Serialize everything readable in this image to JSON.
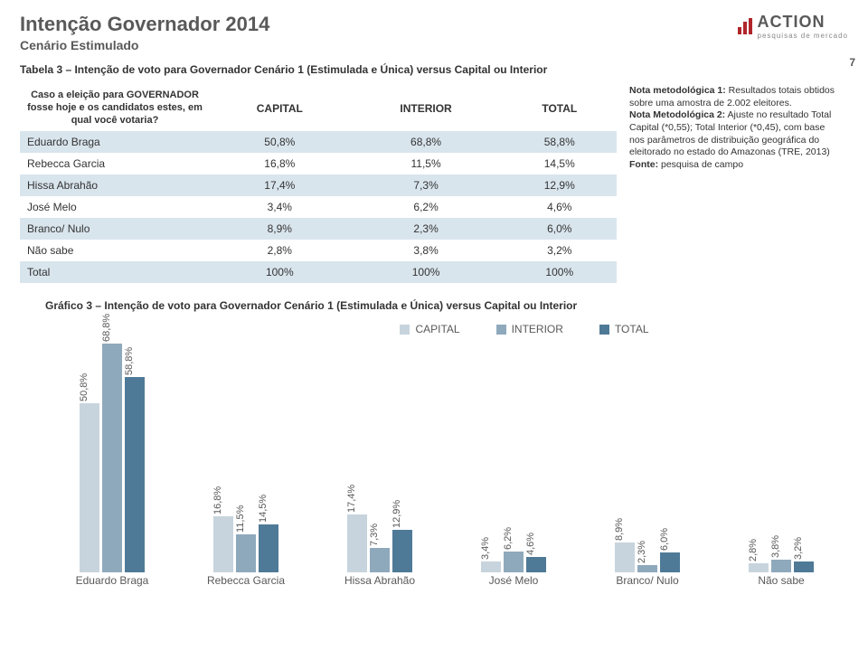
{
  "page_number": "7",
  "header": {
    "title": "Intenção Governador 2014",
    "subtitle": "Cenário Estimulado",
    "logo_name": "ACTION",
    "logo_tag": "pesquisas de mercado"
  },
  "tabela_title": "Tabela 3 – Intenção de voto para Governador Cenário 1 (Estimulada e Única) versus Capital ou Interior",
  "table": {
    "question": "Caso a eleição para GOVERNADOR fosse hoje e os candidatos estes, em qual você votaria?",
    "columns": [
      "CAPITAL",
      "INTERIOR",
      "TOTAL"
    ],
    "rows": [
      {
        "label": "Eduardo Braga",
        "vals": [
          "50,8%",
          "68,8%",
          "58,8%"
        ],
        "band": true
      },
      {
        "label": "Rebecca Garcia",
        "vals": [
          "16,8%",
          "11,5%",
          "14,5%"
        ],
        "band": false
      },
      {
        "label": "Hissa Abrahão",
        "vals": [
          "17,4%",
          "7,3%",
          "12,9%"
        ],
        "band": true
      },
      {
        "label": "José Melo",
        "vals": [
          "3,4%",
          "6,2%",
          "4,6%"
        ],
        "band": false
      },
      {
        "label": "Branco/ Nulo",
        "vals": [
          "8,9%",
          "2,3%",
          "6,0%"
        ],
        "band": true
      },
      {
        "label": "Não sabe",
        "vals": [
          "2,8%",
          "3,8%",
          "3,2%"
        ],
        "band": false
      },
      {
        "label": "Total",
        "vals": [
          "100%",
          "100%",
          "100%"
        ],
        "band": true
      }
    ]
  },
  "note": {
    "l1b": "Nota metodológica 1:",
    "l1": " Resultados totais obtidos sobre uma amostra de 2.002 eleitores.",
    "l2b": "Nota Metodológica 2:",
    "l2": " Ajuste no resultado Total Capital (*0,55); Total Interior (*0,45), com base nos parâmetros de distribuição geográfica do eleitorado no estado do Amazonas (TRE, 2013)",
    "l3b": "Fonte:",
    "l3": " pesquisa de campo"
  },
  "chart": {
    "title": "Gráfico 3 – Intenção de voto para Governador Cenário 1 (Estimulada e Única) versus Capital ou Interior",
    "type": "bar",
    "max": 70,
    "series": [
      {
        "name": "CAPITAL",
        "color": "#c7d4dd"
      },
      {
        "name": "INTERIOR",
        "color": "#8fa9bc"
      },
      {
        "name": "TOTAL",
        "color": "#4f7a97"
      }
    ],
    "categories": [
      "Eduardo Braga",
      "Rebecca Garcia",
      "Hissa Abrahão",
      "José Melo",
      "Branco/ Nulo",
      "Não sabe"
    ],
    "data": [
      {
        "vals": [
          50.8,
          68.8,
          58.8
        ],
        "labels": [
          "50,8%",
          "68,8%",
          "58,8%"
        ]
      },
      {
        "vals": [
          16.8,
          11.5,
          14.5
        ],
        "labels": [
          "16,8%",
          "11,5%",
          "14,5%"
        ]
      },
      {
        "vals": [
          17.4,
          7.3,
          12.9
        ],
        "labels": [
          "17,4%",
          "7,3%",
          "12,9%"
        ]
      },
      {
        "vals": [
          3.4,
          6.2,
          4.6
        ],
        "labels": [
          "3,4%",
          "6,2%",
          "4,6%"
        ]
      },
      {
        "vals": [
          8.9,
          2.3,
          6.0
        ],
        "labels": [
          "8,9%",
          "2,3%",
          "6,0%"
        ]
      },
      {
        "vals": [
          2.8,
          3.8,
          3.2
        ],
        "labels": [
          "2,8%",
          "3,8%",
          "3,2%"
        ]
      }
    ]
  }
}
